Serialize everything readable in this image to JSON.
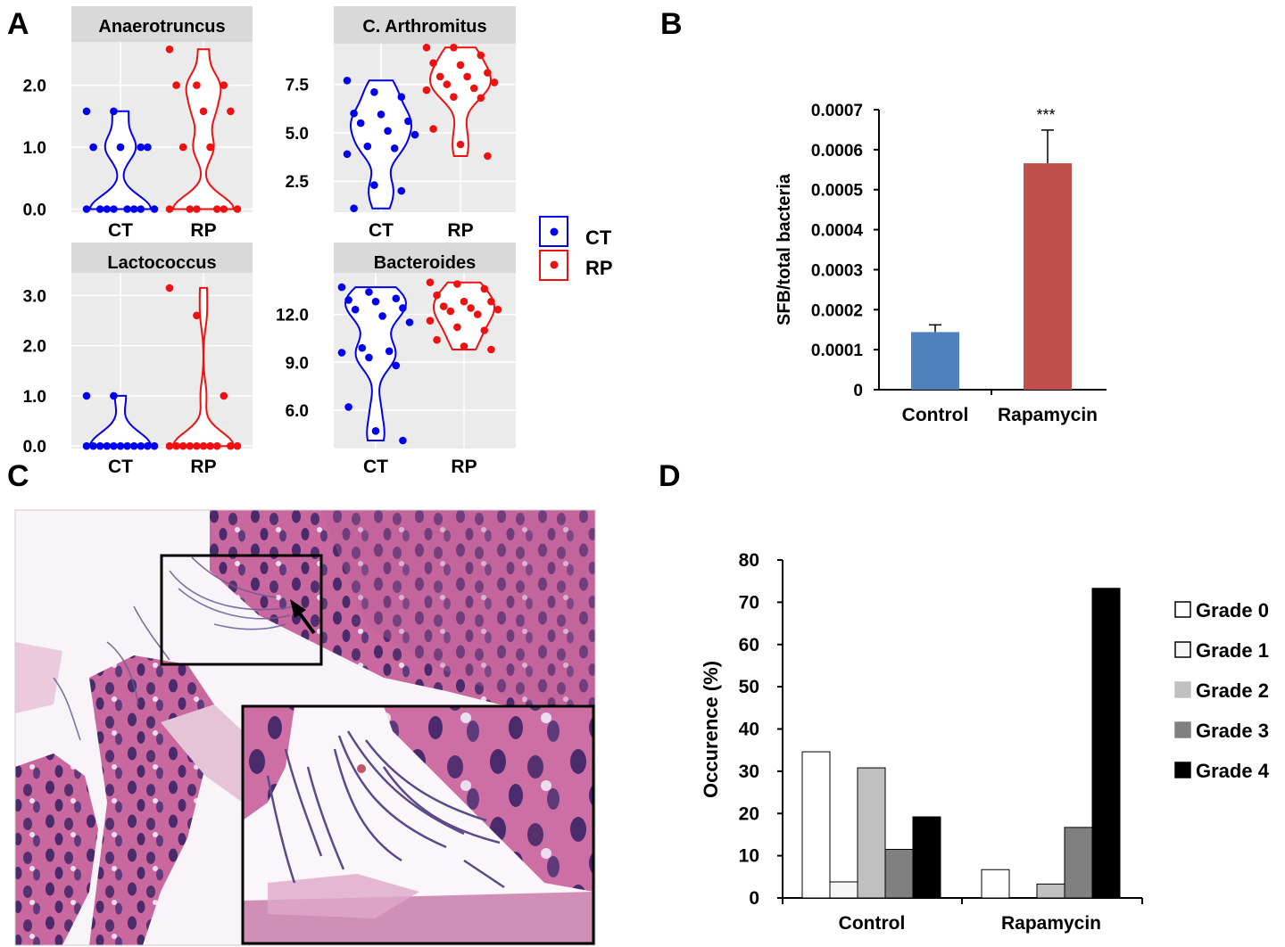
{
  "panel_labels": {
    "a": "A",
    "b": "B",
    "c": "C",
    "d": "D"
  },
  "colors": {
    "ct": "#0000ee",
    "rp": "#ee1111",
    "strip": "#d9d9d9",
    "panel": "#ebebeb",
    "control_bar": "#4f81bd",
    "rapamycin_bar": "#c0504d"
  },
  "legend_a": {
    "ct": "CT",
    "rp": "RP"
  },
  "chart_data": [
    {
      "type": "scatter",
      "title": "Anaerotruncus",
      "categories": [
        "CT",
        "RP"
      ],
      "yticks": [
        "0.0",
        "1.0",
        "2.0"
      ],
      "ylim": [
        -0.05,
        2.7
      ],
      "series": [
        {
          "name": "CT",
          "values": [
            1.58,
            1.58,
            1.0,
            1.0,
            1.0,
            1.0,
            0,
            0,
            0,
            0,
            0,
            0,
            0,
            0
          ]
        },
        {
          "name": "RP",
          "values": [
            2.58,
            2.0,
            2.0,
            2.0,
            1.58,
            1.58,
            1.0,
            1.0,
            0,
            0,
            0,
            0,
            0,
            0
          ]
        }
      ]
    },
    {
      "type": "scatter",
      "title": "C. Arthromitus",
      "categories": [
        "CT",
        "RP"
      ],
      "yticks": [
        "2.5",
        "5.0",
        "7.5"
      ],
      "ylim": [
        0.9,
        9.6
      ],
      "series": [
        {
          "name": "CT",
          "values": [
            7.7,
            7.1,
            6.85,
            6.0,
            5.95,
            5.6,
            5.5,
            5.1,
            4.9,
            4.3,
            4.2,
            3.9,
            2.3,
            2.0,
            1.1
          ]
        },
        {
          "name": "RP",
          "values": [
            9.4,
            9.4,
            9.0,
            8.6,
            8.5,
            8.1,
            7.9,
            7.9,
            7.6,
            7.5,
            7.3,
            7.2,
            6.85,
            6.8,
            5.2,
            4.4,
            3.8
          ]
        }
      ]
    },
    {
      "type": "scatter",
      "title": "Lactococcus",
      "categories": [
        "CT",
        "RP"
      ],
      "yticks": [
        "0.0",
        "1.0",
        "2.0",
        "3.0"
      ],
      "ylim": [
        -0.05,
        3.45
      ],
      "series": [
        {
          "name": "CT",
          "values": [
            1.0,
            1.0,
            0,
            0,
            0,
            0,
            0,
            0,
            0,
            0,
            0,
            0,
            0
          ]
        },
        {
          "name": "RP",
          "values": [
            3.15,
            2.6,
            1.0,
            0,
            0,
            0,
            0,
            0,
            0,
            0,
            0,
            0,
            0
          ]
        }
      ]
    },
    {
      "type": "scatter",
      "title": "Bacteroides",
      "categories": [
        "CT",
        "RP"
      ],
      "yticks": [
        "6.0",
        "9.0",
        "12.0"
      ],
      "ylim": [
        3.6,
        14.6
      ],
      "series": [
        {
          "name": "CT",
          "values": [
            13.7,
            13.4,
            13.0,
            12.9,
            12.8,
            12.4,
            12.3,
            11.9,
            11.5,
            9.9,
            9.7,
            9.6,
            9.3,
            8.8,
            6.2,
            4.7,
            4.1
          ]
        },
        {
          "name": "RP",
          "values": [
            14.0,
            13.9,
            13.6,
            13.2,
            12.8,
            12.8,
            12.5,
            12.4,
            12.3,
            12.2,
            12.0,
            11.6,
            11.2,
            11.0,
            10.4,
            10.0,
            9.8
          ]
        }
      ]
    },
    {
      "type": "bar",
      "title": "",
      "categories": [
        "Control",
        "Rapamycin"
      ],
      "values": [
        0.000144,
        0.000566
      ],
      "errors": [
        1.8e-05,
        8.3e-05
      ],
      "ylabel": "SFB/total bacteria",
      "xlabel": "",
      "ylim": [
        0,
        0.0007
      ],
      "yticks": [
        "0",
        "0.0001",
        "0.0002",
        "0.0003",
        "0.0004",
        "0.0005",
        "0.0006",
        "0.0007"
      ],
      "annotation": "***"
    },
    {
      "type": "bar",
      "title": "",
      "categories": [
        "Control",
        "Rapamycin"
      ],
      "ylabel": "Occurence (%)",
      "xlabel": "",
      "ylim": [
        0,
        80
      ],
      "yticks": [
        "0",
        "10",
        "20",
        "30",
        "40",
        "50",
        "60",
        "70",
        "80"
      ],
      "series": [
        {
          "name": "Grade 0",
          "values": [
            34.6,
            6.7
          ],
          "color": "#ffffff"
        },
        {
          "name": "Grade 1",
          "values": [
            3.8,
            0
          ],
          "color": "#f5f5f5"
        },
        {
          "name": "Grade 2",
          "values": [
            30.8,
            3.3
          ],
          "color": "#c0c0c0"
        },
        {
          "name": "Grade 3",
          "values": [
            11.5,
            16.7
          ],
          "color": "#808080"
        },
        {
          "name": "Grade 4",
          "values": [
            19.2,
            73.3
          ],
          "color": "#000000"
        }
      ]
    }
  ]
}
